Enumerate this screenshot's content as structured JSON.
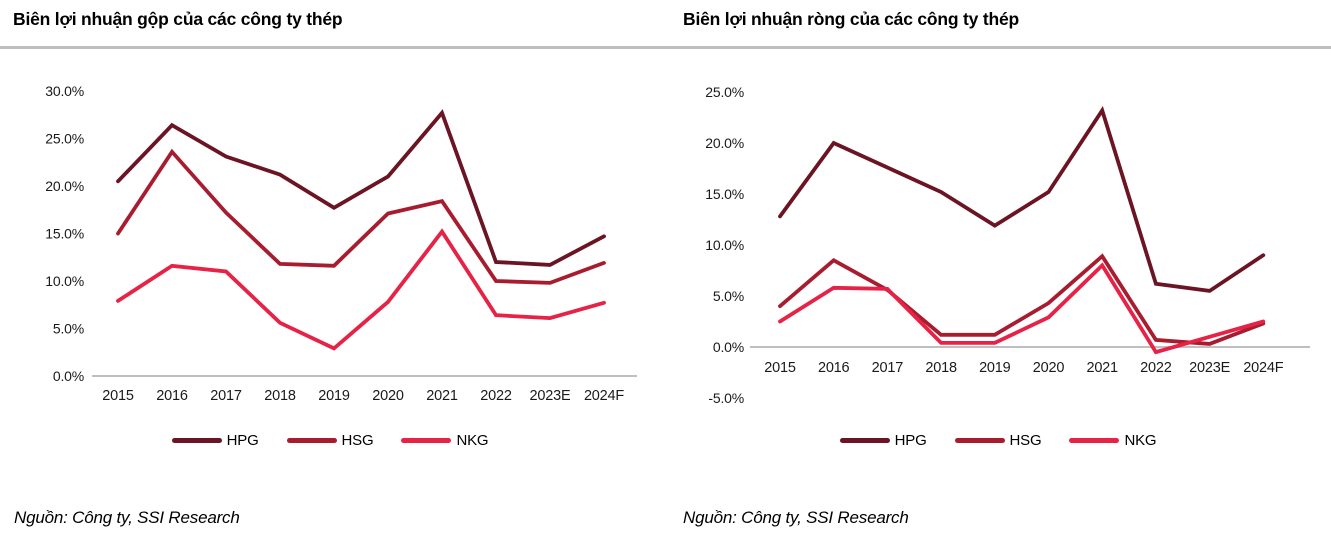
{
  "sources": {
    "left": "Nguồn: Công ty, SSI Research",
    "right": "Nguồn: Công ty, SSI Research"
  },
  "colors": {
    "hpg": "#6B1423",
    "hsg": "#A81C30",
    "nkg": "#E62246",
    "zero_line": "#BFBFBF",
    "title_rule": "#BFBFBF",
    "text": "#000000"
  },
  "chart_data": [
    {
      "type": "line",
      "title": "Biên lợi nhuận gộp của các công ty thép",
      "categories": [
        "2015",
        "2016",
        "2017",
        "2018",
        "2019",
        "2020",
        "2021",
        "2022",
        "2023E",
        "2024F"
      ],
      "series": [
        {
          "name": "HPG",
          "color": "#6B1423",
          "values": [
            20.5,
            26.4,
            23.1,
            21.2,
            17.7,
            21.0,
            27.7,
            12.0,
            11.7,
            14.7
          ]
        },
        {
          "name": "HSG",
          "color": "#A81C30",
          "values": [
            15.0,
            23.6,
            17.2,
            11.8,
            11.6,
            17.1,
            18.4,
            10.0,
            9.8,
            11.9
          ]
        },
        {
          "name": "NKG",
          "color": "#E62246",
          "values": [
            7.9,
            11.6,
            11.0,
            5.6,
            2.9,
            7.8,
            15.2,
            6.4,
            6.1,
            7.7
          ]
        }
      ],
      "ylim": [
        0,
        30
      ],
      "ytick_step": 5,
      "ytick_format": "percent_1dp",
      "grid": false,
      "legend_position": "bottom",
      "xlabel": "",
      "ylabel": ""
    },
    {
      "type": "line",
      "title": "Biên lợi nhuận ròng của các công ty thép",
      "categories": [
        "2015",
        "2016",
        "2017",
        "2018",
        "2019",
        "2020",
        "2021",
        "2022",
        "2023E",
        "2024F"
      ],
      "series": [
        {
          "name": "HPG",
          "color": "#6B1423",
          "values": [
            12.8,
            20.0,
            17.6,
            15.2,
            11.9,
            15.2,
            23.2,
            6.2,
            5.5,
            9.0
          ]
        },
        {
          "name": "HSG",
          "color": "#A81C30",
          "values": [
            4.0,
            8.5,
            5.6,
            1.2,
            1.2,
            4.3,
            8.9,
            0.7,
            0.3,
            2.3
          ]
        },
        {
          "name": "NKG",
          "color": "#E62246",
          "values": [
            2.5,
            5.8,
            5.7,
            0.4,
            0.4,
            2.9,
            8.0,
            -0.5,
            1.0,
            2.5
          ]
        }
      ],
      "ylim": [
        -5,
        25
      ],
      "ytick_step": 5,
      "ytick_format": "percent_1dp",
      "grid": false,
      "legend_position": "bottom",
      "xlabel": "",
      "ylabel": ""
    }
  ]
}
